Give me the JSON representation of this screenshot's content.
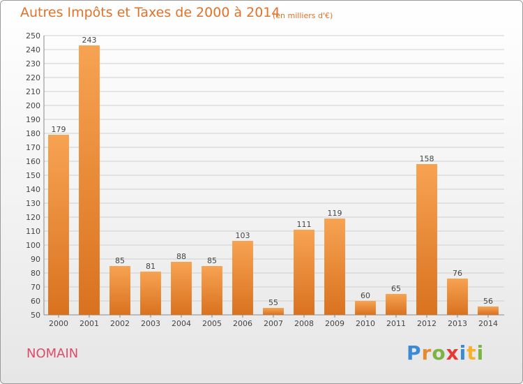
{
  "title": "Autres Impôts et Taxes de 2000 à 2014",
  "subtitle": "(en milliers d'€)",
  "commune": "NOMAIN",
  "logo": {
    "letters": [
      "P",
      "r",
      "o",
      "x",
      "i",
      "t",
      "i"
    ],
    "colors": [
      "#3a8ad6",
      "#e58a2e",
      "#7cb342",
      "#e53935",
      "#3a8ad6",
      "#f6b22d",
      "#7cb342"
    ]
  },
  "colors": {
    "bar_top": "#f7a352",
    "bar_bottom": "#d9721f",
    "text": "#e0722a",
    "commune": "#dd4b6a",
    "grid": "#cfcfcf"
  },
  "chart_data": {
    "type": "bar",
    "title": "Autres Impôts et Taxes de 2000 à 2014",
    "subtitle": "(en milliers d'€)",
    "categories": [
      "2000",
      "2001",
      "2002",
      "2003",
      "2004",
      "2005",
      "2006",
      "2007",
      "2008",
      "2009",
      "2010",
      "2011",
      "2012",
      "2013",
      "2014"
    ],
    "values": [
      179,
      243,
      85,
      81,
      88,
      85,
      103,
      55,
      111,
      119,
      60,
      65,
      158,
      76,
      56
    ],
    "ylim": [
      50,
      250
    ],
    "ytick_step": 10,
    "grid": true,
    "data_labels": true
  }
}
